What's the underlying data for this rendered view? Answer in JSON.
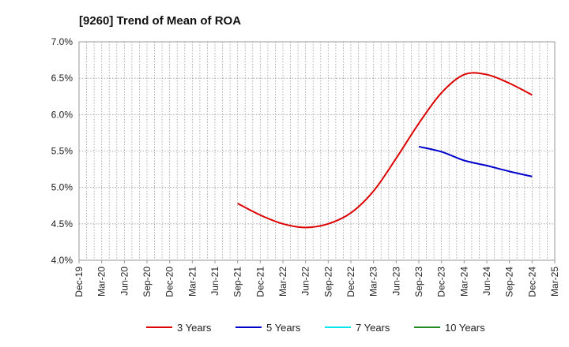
{
  "chart_data": {
    "type": "line",
    "title": "[9260]  Trend of Mean of ROA",
    "xlabel": "",
    "ylabel": "",
    "x_ticks": [
      "Dec-19",
      "Mar-20",
      "Jun-20",
      "Sep-20",
      "Dec-20",
      "Mar-21",
      "Jun-21",
      "Sep-21",
      "Dec-21",
      "Mar-22",
      "Jun-22",
      "Sep-22",
      "Dec-22",
      "Mar-23",
      "Jun-23",
      "Sep-23",
      "Dec-23",
      "Mar-24",
      "Jun-24",
      "Sep-24",
      "Dec-24",
      "Mar-25"
    ],
    "y_ticks": [
      "4.0%",
      "4.5%",
      "5.0%",
      "5.5%",
      "6.0%",
      "6.5%",
      "7.0%"
    ],
    "ylim": [
      4.0,
      7.0
    ],
    "grid": true,
    "legend_position": "bottom",
    "series": [
      {
        "name": "3 Years",
        "color": "#dd0000",
        "x": [
          "Sep-21",
          "Dec-21",
          "Mar-22",
          "Jun-22",
          "Sep-22",
          "Dec-22",
          "Mar-23",
          "Jun-23",
          "Sep-23",
          "Dec-23",
          "Mar-24",
          "Jun-24",
          "Sep-24",
          "Dec-24"
        ],
        "values": [
          4.78,
          4.62,
          4.5,
          4.45,
          4.5,
          4.65,
          4.95,
          5.4,
          5.88,
          6.3,
          6.55,
          6.55,
          6.43,
          6.27
        ]
      },
      {
        "name": "5 Years",
        "color": "#0000cc",
        "x": [
          "Sep-23",
          "Dec-23",
          "Mar-24",
          "Jun-24",
          "Sep-24",
          "Dec-24"
        ],
        "values": [
          5.56,
          5.49,
          5.37,
          5.3,
          5.22,
          5.15
        ]
      },
      {
        "name": "7 Years",
        "color": "#00e5ee",
        "x": [],
        "values": []
      },
      {
        "name": "10 Years",
        "color": "#228b22",
        "x": [],
        "values": []
      }
    ]
  }
}
